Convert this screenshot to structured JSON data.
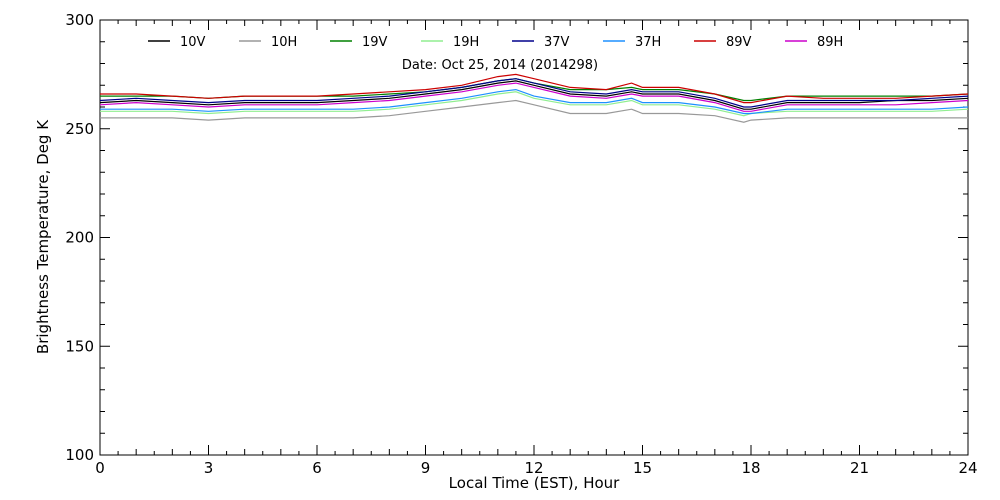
{
  "chart_data": {
    "type": "line",
    "annotation": "Date: Oct 25, 2014 (2014298)",
    "xlabel": "Local Time (EST), Hour",
    "ylabel": "Brightness Temperature, Deg K",
    "xlim": [
      0,
      24
    ],
    "ylim": [
      100,
      300
    ],
    "xticks": [
      0,
      3,
      6,
      9,
      12,
      15,
      18,
      21,
      24
    ],
    "yticks": [
      100,
      150,
      200,
      250,
      300
    ],
    "grid": false,
    "legend_position": "top",
    "series": [
      {
        "name": "10V",
        "color": "#000000",
        "x": [
          0,
          1,
          2,
          3,
          4,
          5,
          6,
          7,
          8,
          9,
          10,
          11,
          11.5,
          12,
          13,
          14,
          14.7,
          15,
          16,
          17,
          17.8,
          18,
          19,
          20,
          21,
          22,
          23,
          24
        ],
        "values": [
          262,
          263,
          262,
          261,
          262,
          262,
          262,
          263,
          264,
          266,
          268,
          271,
          272,
          270,
          266,
          265,
          267,
          266,
          266,
          263,
          259,
          259,
          262,
          262,
          262,
          263,
          263,
          264
        ]
      },
      {
        "name": "10H",
        "color": "#999999",
        "x": [
          0,
          1,
          2,
          3,
          4,
          5,
          6,
          7,
          8,
          9,
          10,
          11,
          11.5,
          12,
          13,
          14,
          14.7,
          15,
          16,
          17,
          17.8,
          18,
          19,
          20,
          21,
          22,
          23,
          24
        ],
        "values": [
          255,
          255,
          255,
          254,
          255,
          255,
          255,
          255,
          256,
          258,
          260,
          262,
          263,
          261,
          257,
          257,
          259,
          257,
          257,
          256,
          253,
          254,
          255,
          255,
          255,
          255,
          255,
          255
        ]
      },
      {
        "name": "19V",
        "color": "#008000",
        "x": [
          0,
          1,
          2,
          3,
          4,
          5,
          6,
          7,
          8,
          9,
          10,
          11,
          11.5,
          12,
          13,
          14,
          14.7,
          15,
          16,
          17,
          17.8,
          18,
          19,
          20,
          21,
          22,
          23,
          24
        ],
        "values": [
          265,
          265,
          265,
          264,
          265,
          265,
          265,
          265,
          266,
          267,
          269,
          272,
          273,
          271,
          268,
          268,
          269,
          268,
          268,
          266,
          263,
          263,
          265,
          265,
          265,
          265,
          265,
          266
        ]
      },
      {
        "name": "19H",
        "color": "#90ee90",
        "x": [
          0,
          1,
          2,
          3,
          4,
          5,
          6,
          7,
          8,
          9,
          10,
          11,
          11.5,
          12,
          13,
          14,
          14.7,
          15,
          16,
          17,
          17.8,
          18,
          19,
          20,
          21,
          22,
          23,
          24
        ],
        "values": [
          258,
          258,
          258,
          257,
          258,
          258,
          258,
          258,
          259,
          261,
          263,
          266,
          267,
          264,
          261,
          261,
          263,
          261,
          261,
          259,
          256,
          257,
          258,
          258,
          258,
          258,
          258,
          259
        ]
      },
      {
        "name": "37V",
        "color": "#00008b",
        "x": [
          0,
          1,
          2,
          3,
          4,
          5,
          6,
          7,
          8,
          9,
          10,
          11,
          11.5,
          12,
          13,
          14,
          14.7,
          15,
          16,
          17,
          17.8,
          18,
          19,
          20,
          21,
          22,
          23,
          24
        ],
        "values": [
          263,
          264,
          263,
          262,
          263,
          263,
          263,
          264,
          265,
          267,
          269,
          272,
          273,
          271,
          267,
          266,
          268,
          267,
          267,
          264,
          260,
          260,
          263,
          263,
          263,
          263,
          264,
          265
        ]
      },
      {
        "name": "37H",
        "color": "#1e90ff",
        "x": [
          0,
          1,
          2,
          3,
          4,
          5,
          6,
          7,
          8,
          9,
          10,
          11,
          11.5,
          12,
          13,
          14,
          14.7,
          15,
          16,
          17,
          17.8,
          18,
          19,
          20,
          21,
          22,
          23,
          24
        ],
        "values": [
          259,
          259,
          259,
          258,
          259,
          259,
          259,
          259,
          260,
          262,
          264,
          267,
          268,
          265,
          262,
          262,
          264,
          262,
          262,
          260,
          257,
          257,
          259,
          259,
          259,
          259,
          259,
          260
        ]
      },
      {
        "name": "89V",
        "color": "#cc0000",
        "x": [
          0,
          1,
          2,
          3,
          4,
          5,
          6,
          7,
          8,
          9,
          10,
          11,
          11.5,
          12,
          13,
          14,
          14.7,
          15,
          16,
          17,
          17.8,
          18,
          19,
          20,
          21,
          22,
          23,
          24
        ],
        "values": [
          266,
          266,
          265,
          264,
          265,
          265,
          265,
          266,
          267,
          268,
          270,
          274,
          275,
          273,
          269,
          268,
          271,
          269,
          269,
          266,
          262,
          262,
          265,
          264,
          264,
          264,
          265,
          266
        ]
      },
      {
        "name": "89H",
        "color": "#cc00cc",
        "x": [
          0,
          1,
          2,
          3,
          4,
          5,
          6,
          7,
          8,
          9,
          10,
          11,
          11.5,
          12,
          13,
          14,
          14.7,
          15,
          16,
          17,
          17.8,
          18,
          19,
          20,
          21,
          22,
          23,
          24
        ],
        "values": [
          261,
          262,
          261,
          260,
          261,
          261,
          261,
          262,
          263,
          265,
          267,
          270,
          271,
          269,
          265,
          264,
          266,
          265,
          265,
          262,
          258,
          258,
          261,
          261,
          261,
          261,
          262,
          263
        ]
      }
    ]
  }
}
